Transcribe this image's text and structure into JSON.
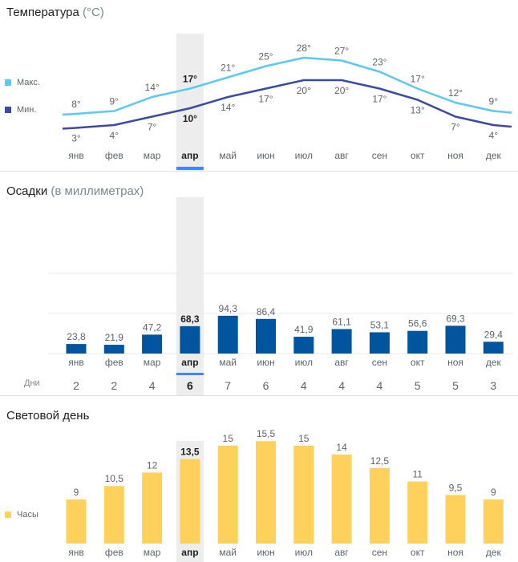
{
  "months": [
    "янв",
    "фев",
    "мар",
    "апр",
    "май",
    "июн",
    "июл",
    "авг",
    "сен",
    "окт",
    "ноя",
    "дек"
  ],
  "selected_month_index": 3,
  "colors": {
    "max": "#5bc8f5",
    "min": "#3b4ba3",
    "precip": "#00559e",
    "daylight": "#fdd15c",
    "highlight": "#ededed",
    "selected": "#4285f4",
    "grid": "#e8eaed"
  },
  "temperature": {
    "title": "Температура",
    "unit": "(°C)",
    "legend_max": "Макс.",
    "legend_min": "Мин."
  },
  "precipitation": {
    "title": "Осадки",
    "unit": "(в миллиметрах)",
    "days_label": "Дни"
  },
  "daylight": {
    "title": "Световой день",
    "legend": "Часы"
  },
  "chart_data": [
    {
      "type": "line",
      "x": [
        "янв",
        "фев",
        "мар",
        "апр",
        "май",
        "июн",
        "июл",
        "авг",
        "сен",
        "окт",
        "ноя",
        "дек"
      ],
      "series": [
        {
          "name": "Макс.",
          "values": [
            8,
            9,
            14,
            17,
            21,
            25,
            28,
            27,
            23,
            17,
            12,
            9
          ],
          "labels": [
            "8°",
            "9°",
            "14°",
            "17°",
            "21°",
            "25°",
            "28°",
            "27°",
            "23°",
            "17°",
            "12°",
            "9°"
          ]
        },
        {
          "name": "Мин.",
          "values": [
            3,
            4,
            7,
            10,
            14,
            17,
            20,
            20,
            17,
            13,
            7,
            4
          ],
          "labels": [
            "3°",
            "4°",
            "7°",
            "10°",
            "14°",
            "17°",
            "20°",
            "20°",
            "17°",
            "13°",
            "7°",
            "4°"
          ]
        }
      ]
    },
    {
      "type": "bar",
      "categories": [
        "янв",
        "фев",
        "мар",
        "апр",
        "май",
        "июн",
        "июл",
        "авг",
        "сен",
        "окт",
        "ноя",
        "дек"
      ],
      "values": [
        23.8,
        21.9,
        47.2,
        68.3,
        94.3,
        86.4,
        41.9,
        61.1,
        53.1,
        56.6,
        69.3,
        29.4
      ],
      "labels": [
        "23,8",
        "21,9",
        "47,2",
        "68,3",
        "94,3",
        "86,4",
        "41,9",
        "61,1",
        "53,1",
        "56,6",
        "69,3",
        "29,4"
      ],
      "days": [
        "2",
        "2",
        "4",
        "6",
        "7",
        "6",
        "4",
        "4",
        "4",
        "5",
        "5",
        "3"
      ],
      "ylim": [
        0,
        300
      ],
      "grid": true
    },
    {
      "type": "bar",
      "categories": [
        "янв",
        "фев",
        "мар",
        "апр",
        "май",
        "июн",
        "июл",
        "авг",
        "сен",
        "окт",
        "ноя",
        "дек"
      ],
      "values": [
        9,
        10.5,
        12,
        13.5,
        15,
        15.5,
        15,
        14,
        12.5,
        11,
        9.5,
        9
      ],
      "labels": [
        "9",
        "10,5",
        "12",
        "13,5",
        "15",
        "15,5",
        "15",
        "14",
        "12,5",
        "11",
        "9,5",
        "9"
      ]
    }
  ]
}
